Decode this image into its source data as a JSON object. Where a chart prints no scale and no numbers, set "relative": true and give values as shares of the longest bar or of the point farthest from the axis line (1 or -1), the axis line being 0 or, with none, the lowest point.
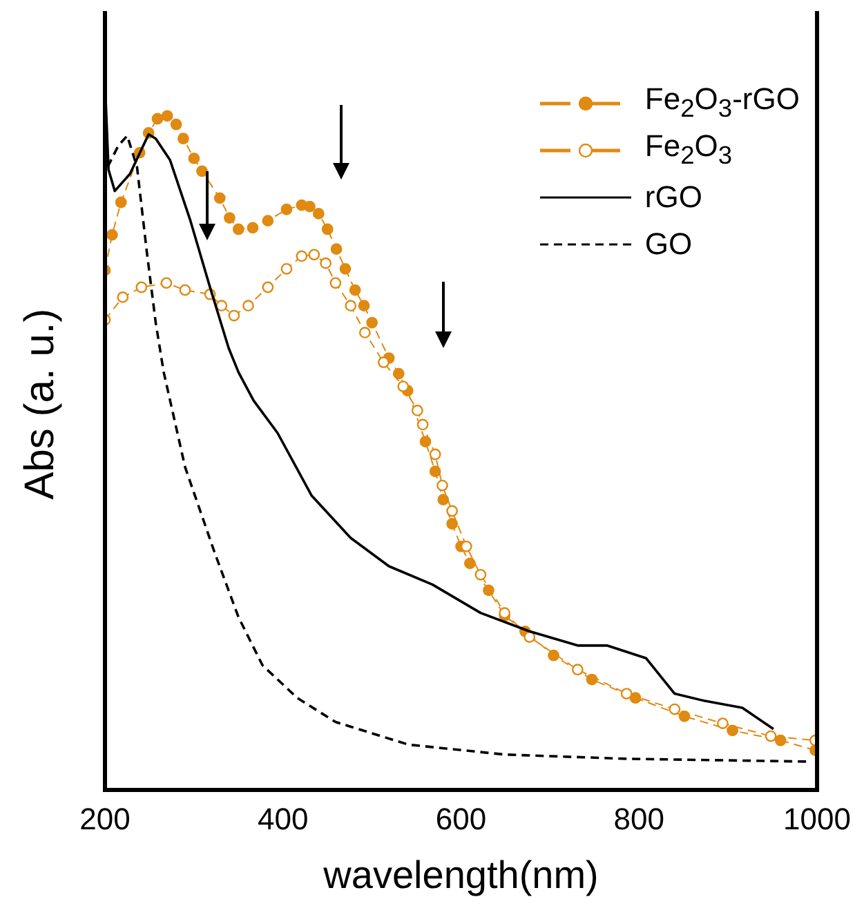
{
  "chart_data": {
    "type": "line",
    "xlabel": "wavelength(nm)",
    "ylabel": "Abs (a. u.)",
    "relative": true,
    "xlim": [
      200,
      1000
    ],
    "xticks": [
      200,
      400,
      600,
      800,
      1000
    ],
    "legend": "top right",
    "series": [
      {
        "name": "Fe$_{2}$O$_{3}$-rGO",
        "color": "#e08a12",
        "marker": "circle",
        "line_style": "dashed",
        "x": [
          200,
          208,
          218,
          239,
          249,
          259,
          270,
          280,
          288,
          300,
          309,
          329,
          340,
          350,
          366,
          383,
          404,
          421,
          430,
          440,
          450,
          460,
          470,
          481,
          491,
          500,
          519,
          530,
          540,
          560,
          571,
          580,
          590,
          600,
          610,
          631,
          649,
          672,
          704,
          747,
          796,
          851,
          905,
          959,
          998
        ],
        "values": [
          0.734,
          0.784,
          0.83,
          0.9,
          0.928,
          0.948,
          0.952,
          0.94,
          0.92,
          0.892,
          0.874,
          0.836,
          0.808,
          0.792,
          0.794,
          0.804,
          0.82,
          0.826,
          0.824,
          0.814,
          0.792,
          0.764,
          0.736,
          0.706,
          0.684,
          0.66,
          0.61,
          0.588,
          0.564,
          0.492,
          0.45,
          0.41,
          0.376,
          0.344,
          0.32,
          0.282,
          0.246,
          0.224,
          0.19,
          0.156,
          0.13,
          0.104,
          0.084,
          0.07,
          0.056
        ]
      },
      {
        "name": "Fe$_{2}$O$_{3}$",
        "color": "#e08a12",
        "marker": "circle",
        "line_style": "dashed",
        "x": [
          200,
          220,
          241,
          269,
          290,
          318,
          331,
          345,
          361,
          383,
          404,
          421,
          435,
          448,
          459,
          476,
          492,
          513,
          535,
          551,
          557,
          571,
          579,
          590,
          606,
          622,
          649,
          677,
          731,
          786,
          840,
          894,
          948,
          998
        ],
        "values": [
          0.664,
          0.696,
          0.71,
          0.716,
          0.706,
          0.7,
          0.684,
          0.67,
          0.684,
          0.71,
          0.736,
          0.754,
          0.756,
          0.744,
          0.716,
          0.684,
          0.646,
          0.604,
          0.57,
          0.536,
          0.516,
          0.474,
          0.43,
          0.394,
          0.344,
          0.304,
          0.25,
          0.216,
          0.17,
          0.136,
          0.114,
          0.094,
          0.076,
          0.07
        ]
      },
      {
        "name": "rGO",
        "color": "#000000",
        "marker": "none",
        "line_style": "solid",
        "x": [
          200,
          204,
          211,
          228,
          249,
          257,
          273,
          296,
          318,
          339,
          350,
          367,
          394,
          432,
          476,
          519,
          568,
          622,
          677,
          731,
          764,
          808,
          840,
          873,
          916,
          951
        ],
        "values": [
          1,
          0.876,
          0.846,
          0.87,
          0.926,
          0.92,
          0.89,
          0.804,
          0.71,
          0.624,
          0.59,
          0.55,
          0.504,
          0.416,
          0.356,
          0.316,
          0.29,
          0.25,
          0.224,
          0.204,
          0.204,
          0.186,
          0.136,
          0.126,
          0.116,
          0.086
        ]
      },
      {
        "name": "GO",
        "color": "#000000",
        "marker": "none",
        "line_style": "dashed",
        "x": [
          203,
          215,
          225,
          236,
          247,
          257,
          266,
          290,
          323,
          350,
          377,
          416,
          459,
          541,
          649,
          786,
          992
        ],
        "values": [
          0.88,
          0.91,
          0.924,
          0.88,
          0.76,
          0.66,
          0.59,
          0.456,
          0.336,
          0.244,
          0.176,
          0.13,
          0.096,
          0.064,
          0.05,
          0.044,
          0.04
        ]
      }
    ]
  }
}
